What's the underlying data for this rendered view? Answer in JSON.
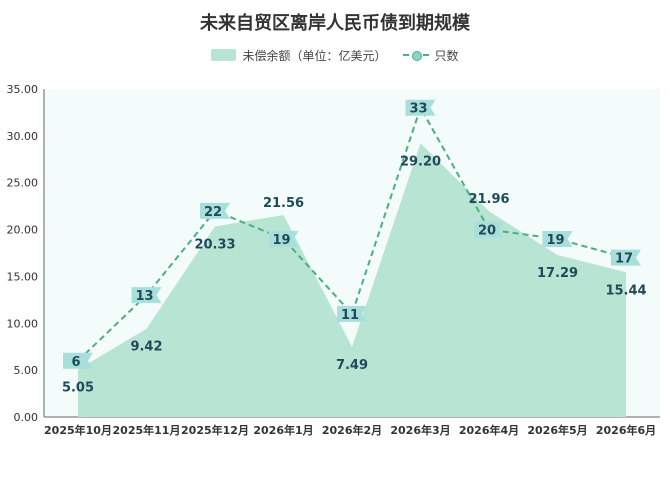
{
  "chart_data": {
    "type": "area",
    "title": "未来自贸区离岸人民币债到期规模",
    "categories": [
      "2025年10月",
      "2025年11月",
      "2025年12月",
      "2026年1月",
      "2026年2月",
      "2026年3月",
      "2026年4月",
      "2026年5月",
      "2026年6月"
    ],
    "ylim": [
      0,
      35
    ],
    "yticks": [
      "0.00",
      "5.00",
      "10.00",
      "15.00",
      "20.00",
      "25.00",
      "30.00",
      "35.00"
    ],
    "grid": false,
    "legend_position": "top-center",
    "series": [
      {
        "name": "未偿余额（单位：亿美元）",
        "type": "area",
        "color": "#b8e4d3",
        "values": [
          5.05,
          9.42,
          20.33,
          21.56,
          7.49,
          29.2,
          21.96,
          17.29,
          15.44
        ],
        "labels": [
          "5.05",
          "9.42",
          "20.33",
          "21.56",
          "7.49",
          "29.20",
          "21.96",
          "17.29",
          "15.44"
        ]
      },
      {
        "name": "只数",
        "type": "line",
        "style": "dashed",
        "color": "#4caf7f",
        "label_bg": "#a9dfdb",
        "values": [
          6,
          13,
          22,
          19,
          11,
          33,
          20,
          19,
          17
        ],
        "labels": [
          "6",
          "13",
          "22",
          "19",
          "11",
          "33",
          "20",
          "19",
          "17"
        ]
      }
    ],
    "colors": {
      "plot_bg": "#f3fcfa",
      "label_text": "#1f4a5a",
      "axis_text": "#333333"
    }
  }
}
